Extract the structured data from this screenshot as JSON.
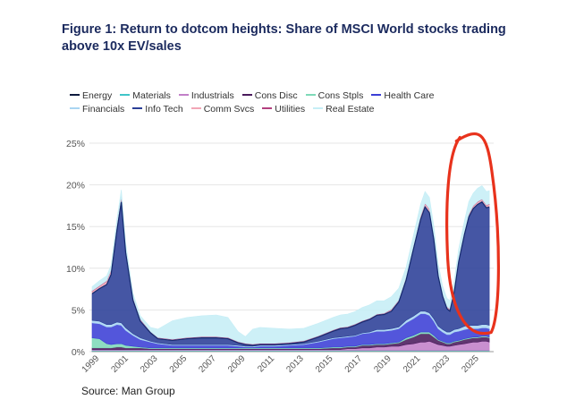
{
  "title": "Figure 1: Return to dotcom heights: Share of MSCI World stocks trading above 10x EV/sales",
  "source": "Source: Man Group",
  "chart_data": {
    "type": "area",
    "stacked": true,
    "title": "Figure 1: Return to dotcom heights: Share of MSCI World stocks trading above 10x EV/sales",
    "xlabel": "",
    "ylabel": "",
    "ylim": [
      0,
      25
    ],
    "xlim": [
      1998.5,
      2026.0
    ],
    "yticks": [
      0,
      5,
      10,
      15,
      20,
      25
    ],
    "ytick_labels": [
      "0%",
      "5%",
      "10%",
      "15%",
      "20%",
      "25%"
    ],
    "xticks": [
      1999,
      2001,
      2003,
      2005,
      2007,
      2009,
      2011,
      2013,
      2015,
      2017,
      2019,
      2021,
      2023,
      2025
    ],
    "xtick_labels": [
      "1999",
      "2001",
      "2003",
      "2005",
      "2007",
      "2009",
      "2011",
      "2013",
      "2015",
      "2017",
      "2019",
      "2021",
      "2023",
      "2025"
    ],
    "legend_position": "top",
    "x": [
      1998.5,
      1999.0,
      1999.5,
      1999.8,
      2000.2,
      2000.5,
      2000.8,
      2001.3,
      2001.8,
      2002.5,
      2003.0,
      2004.0,
      2005.0,
      2006.0,
      2007.0,
      2007.8,
      2008.5,
      2009.0,
      2009.5,
      2010.0,
      2011.0,
      2012.0,
      2013.0,
      2014.0,
      2015.0,
      2015.5,
      2016.0,
      2016.5,
      2017.0,
      2017.5,
      2018.0,
      2018.5,
      2019.0,
      2019.5,
      2020.0,
      2020.5,
      2021.0,
      2021.3,
      2021.6,
      2021.9,
      2022.2,
      2022.5,
      2022.8,
      2023.0,
      2023.3,
      2023.6,
      2024.0,
      2024.3,
      2024.6,
      2024.9,
      2025.2,
      2025.5,
      2025.7
    ],
    "series": [
      {
        "name": "Energy",
        "color": "#0d1b3e",
        "values": [
          0.05,
          0.05,
          0.05,
          0.05,
          0.05,
          0.05,
          0.05,
          0.05,
          0.05,
          0.05,
          0.05,
          0.05,
          0.05,
          0.05,
          0.05,
          0.05,
          0.05,
          0.05,
          0.05,
          0.05,
          0.05,
          0.05,
          0.05,
          0.05,
          0.05,
          0.05,
          0.05,
          0.05,
          0.05,
          0.05,
          0.05,
          0.05,
          0.05,
          0.05,
          0.05,
          0.05,
          0.05,
          0.05,
          0.05,
          0.05,
          0.05,
          0.05,
          0.05,
          0.05,
          0.05,
          0.05,
          0.05,
          0.05,
          0.05,
          0.05,
          0.05,
          0.05,
          0.05
        ]
      },
      {
        "name": "Materials",
        "color": "#40c5c8",
        "values": [
          0.1,
          0.1,
          0.1,
          0.1,
          0.1,
          0.1,
          0.1,
          0.1,
          0.1,
          0.1,
          0.1,
          0.1,
          0.1,
          0.1,
          0.1,
          0.1,
          0.1,
          0.1,
          0.1,
          0.1,
          0.1,
          0.1,
          0.1,
          0.1,
          0.1,
          0.1,
          0.1,
          0.1,
          0.1,
          0.1,
          0.1,
          0.1,
          0.1,
          0.1,
          0.1,
          0.1,
          0.1,
          0.1,
          0.1,
          0.1,
          0.1,
          0.1,
          0.1,
          0.1,
          0.1,
          0.1,
          0.1,
          0.1,
          0.1,
          0.1,
          0.1,
          0.1,
          0.1
        ]
      },
      {
        "name": "Industrials",
        "color": "#c27fc8",
        "values": [
          0.1,
          0.1,
          0.1,
          0.1,
          0.1,
          0.1,
          0.1,
          0.1,
          0.1,
          0.1,
          0.1,
          0.1,
          0.1,
          0.1,
          0.1,
          0.1,
          0.1,
          0.1,
          0.1,
          0.1,
          0.1,
          0.1,
          0.1,
          0.1,
          0.1,
          0.1,
          0.2,
          0.2,
          0.3,
          0.3,
          0.4,
          0.4,
          0.5,
          0.5,
          0.7,
          0.8,
          1.0,
          1.0,
          1.1,
          0.9,
          0.7,
          0.6,
          0.5,
          0.5,
          0.6,
          0.7,
          0.8,
          0.9,
          1.0,
          1.0,
          1.1,
          1.1,
          1.0
        ]
      },
      {
        "name": "Cons Disc",
        "color": "#4a1a5c",
        "values": [
          0.2,
          0.2,
          0.2,
          0.2,
          0.3,
          0.3,
          0.2,
          0.2,
          0.2,
          0.1,
          0.1,
          0.1,
          0.1,
          0.1,
          0.1,
          0.1,
          0.1,
          0.1,
          0.1,
          0.1,
          0.1,
          0.1,
          0.1,
          0.1,
          0.2,
          0.2,
          0.2,
          0.2,
          0.3,
          0.3,
          0.3,
          0.3,
          0.3,
          0.4,
          0.6,
          0.8,
          1.0,
          1.0,
          0.9,
          0.7,
          0.5,
          0.4,
          0.3,
          0.3,
          0.4,
          0.4,
          0.5,
          0.5,
          0.5,
          0.5,
          0.5,
          0.5,
          0.5
        ]
      },
      {
        "name": "Cons Stpls",
        "color": "#7ed9b8",
        "values": [
          1.2,
          1.1,
          0.5,
          0.4,
          0.4,
          0.4,
          0.3,
          0.2,
          0.1,
          0.1,
          0.1,
          0.1,
          0.1,
          0.1,
          0.1,
          0.1,
          0.1,
          0.1,
          0.1,
          0.1,
          0.1,
          0.1,
          0.1,
          0.1,
          0.1,
          0.1,
          0.1,
          0.1,
          0.1,
          0.1,
          0.1,
          0.1,
          0.1,
          0.1,
          0.2,
          0.2,
          0.2,
          0.2,
          0.2,
          0.2,
          0.1,
          0.1,
          0.1,
          0.1,
          0.1,
          0.1,
          0.1,
          0.1,
          0.1,
          0.1,
          0.1,
          0.1,
          0.1
        ]
      },
      {
        "name": "Health Care",
        "color": "#3b3fd6",
        "values": [
          1.8,
          1.8,
          2.0,
          2.1,
          2.3,
          2.2,
          1.8,
          1.3,
          0.9,
          0.7,
          0.5,
          0.3,
          0.3,
          0.3,
          0.3,
          0.3,
          0.2,
          0.1,
          0.1,
          0.2,
          0.2,
          0.3,
          0.4,
          0.7,
          1.0,
          1.1,
          1.1,
          1.2,
          1.3,
          1.4,
          1.5,
          1.5,
          1.5,
          1.6,
          1.8,
          2.0,
          2.2,
          2.2,
          2.0,
          1.7,
          1.3,
          1.1,
          1.0,
          1.0,
          1.1,
          1.1,
          1.1,
          1.1,
          1.0,
          1.0,
          1.0,
          1.0,
          1.0
        ]
      },
      {
        "name": "Financials",
        "color": "#a9d5f2",
        "values": [
          0.3,
          0.3,
          0.3,
          0.3,
          0.3,
          0.3,
          0.3,
          0.2,
          0.2,
          0.1,
          0.1,
          0.1,
          0.1,
          0.1,
          0.1,
          0.1,
          0.1,
          0.1,
          0.1,
          0.1,
          0.1,
          0.1,
          0.1,
          0.1,
          0.1,
          0.1,
          0.1,
          0.1,
          0.1,
          0.1,
          0.2,
          0.2,
          0.2,
          0.2,
          0.3,
          0.3,
          0.3,
          0.3,
          0.3,
          0.3,
          0.3,
          0.3,
          0.3,
          0.3,
          0.3,
          0.3,
          0.4,
          0.4,
          0.4,
          0.4,
          0.4,
          0.4,
          0.4
        ]
      },
      {
        "name": "Info Tech",
        "color": "#2b3f97",
        "values": [
          3.2,
          3.9,
          4.8,
          6.0,
          11.0,
          14.5,
          9.0,
          4.0,
          2.0,
          1.0,
          0.5,
          0.5,
          0.7,
          0.8,
          0.8,
          0.7,
          0.3,
          0.2,
          0.1,
          0.1,
          0.1,
          0.1,
          0.2,
          0.5,
          0.8,
          1.0,
          1.0,
          1.2,
          1.3,
          1.5,
          1.7,
          1.8,
          2.1,
          3.0,
          4.8,
          8.0,
          11.0,
          12.5,
          12.0,
          9.5,
          6.0,
          4.0,
          2.8,
          2.5,
          4.5,
          8.0,
          11.0,
          13.0,
          14.0,
          14.5,
          14.7,
          14.0,
          14.2
        ]
      },
      {
        "name": "Comm Svcs",
        "color": "#f2a6b6",
        "values": [
          0.3,
          0.3,
          0.4,
          0.5,
          0.6,
          0.6,
          0.5,
          0.3,
          0.2,
          0.1,
          0.1,
          0.1,
          0.1,
          0.1,
          0.1,
          0.1,
          0.1,
          0.1,
          0.1,
          0.1,
          0.1,
          0.1,
          0.1,
          0.1,
          0.1,
          0.1,
          0.1,
          0.1,
          0.1,
          0.1,
          0.1,
          0.1,
          0.2,
          0.2,
          0.3,
          0.3,
          0.4,
          0.4,
          0.4,
          0.3,
          0.3,
          0.2,
          0.2,
          0.2,
          0.2,
          0.3,
          0.3,
          0.3,
          0.3,
          0.3,
          0.3,
          0.3,
          0.3
        ]
      },
      {
        "name": "Utilities",
        "color": "#b3407f",
        "values": [
          0.05,
          0.05,
          0.05,
          0.05,
          0.05,
          0.05,
          0.05,
          0.05,
          0.05,
          0.05,
          0.05,
          0.05,
          0.05,
          0.05,
          0.05,
          0.05,
          0.05,
          0.05,
          0.05,
          0.05,
          0.05,
          0.05,
          0.05,
          0.05,
          0.05,
          0.05,
          0.05,
          0.05,
          0.05,
          0.05,
          0.05,
          0.05,
          0.05,
          0.05,
          0.05,
          0.05,
          0.05,
          0.05,
          0.05,
          0.05,
          0.05,
          0.05,
          0.05,
          0.05,
          0.05,
          0.05,
          0.05,
          0.05,
          0.05,
          0.05,
          0.05,
          0.05,
          0.05
        ]
      },
      {
        "name": "Real Estate",
        "color": "#c6eef6",
        "values": [
          0.5,
          0.6,
          0.6,
          0.6,
          0.7,
          0.8,
          0.6,
          0.5,
          0.4,
          0.5,
          1.0,
          2.2,
          2.4,
          2.5,
          2.6,
          2.4,
          1.2,
          0.8,
          1.8,
          1.9,
          1.8,
          1.6,
          1.5,
          1.5,
          1.5,
          1.5,
          1.5,
          1.5,
          1.6,
          1.6,
          1.6,
          1.5,
          1.5,
          1.4,
          1.2,
          1.3,
          1.4,
          1.4,
          1.4,
          1.3,
          1.2,
          1.0,
          1.0,
          1.0,
          1.1,
          1.2,
          1.3,
          1.5,
          1.5,
          1.6,
          1.6,
          1.6,
          1.6
        ]
      }
    ]
  },
  "annotation": {
    "type": "hand-drawn red circle",
    "color": "#e8321c",
    "highlight_x_range": [
      2023.2,
      2026.0
    ]
  }
}
